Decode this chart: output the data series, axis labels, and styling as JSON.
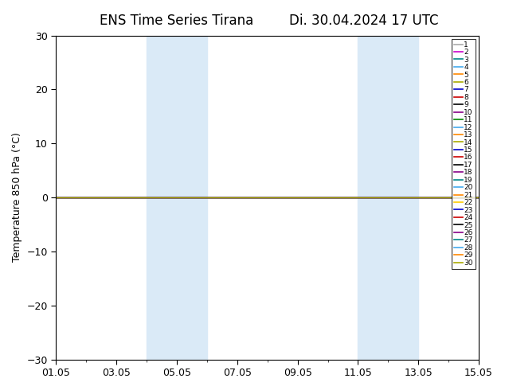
{
  "title_left": "ENS Time Series Tirana",
  "title_right": "Di. 30.04.2024 17 UTC",
  "ylabel": "Temperature 850 hPa (°C)",
  "ylim": [
    -30,
    30
  ],
  "yticks": [
    -30,
    -20,
    -10,
    0,
    10,
    20,
    30
  ],
  "xtick_labels": [
    "01.05",
    "03.05",
    "05.05",
    "07.05",
    "09.05",
    "11.05",
    "13.05",
    "15.05"
  ],
  "xtick_positions_days": [
    0,
    2,
    4,
    6,
    8,
    10,
    12,
    14
  ],
  "total_days": 14,
  "shaded_bands": [
    {
      "start_day": 3.0,
      "end_day": 5.0
    },
    {
      "start_day": 10.0,
      "end_day": 12.0
    }
  ],
  "shaded_color": "#daeaf7",
  "line_y_value": 0.0,
  "ensemble_colors": [
    "#aaaaaa",
    "#cc00cc",
    "#008888",
    "#44aaee",
    "#ff8800",
    "#aaaa00",
    "#0000cc",
    "#cc0000",
    "#000000",
    "#880088",
    "#008800",
    "#44aaee",
    "#ff8800",
    "#aaaa00",
    "#0000cc",
    "#cc0000",
    "#000000",
    "#880088",
    "#008888",
    "#44aaee",
    "#ff8800",
    "#ffcc00",
    "#0000cc",
    "#cc0000",
    "#000000",
    "#880088",
    "#008888",
    "#44aaee",
    "#ff8800",
    "#aaaa00"
  ],
  "n_members": 30,
  "background_color": "#ffffff",
  "title_fontsize": 12,
  "axis_fontsize": 9,
  "tick_fontsize": 9,
  "legend_fontsize": 6.5
}
